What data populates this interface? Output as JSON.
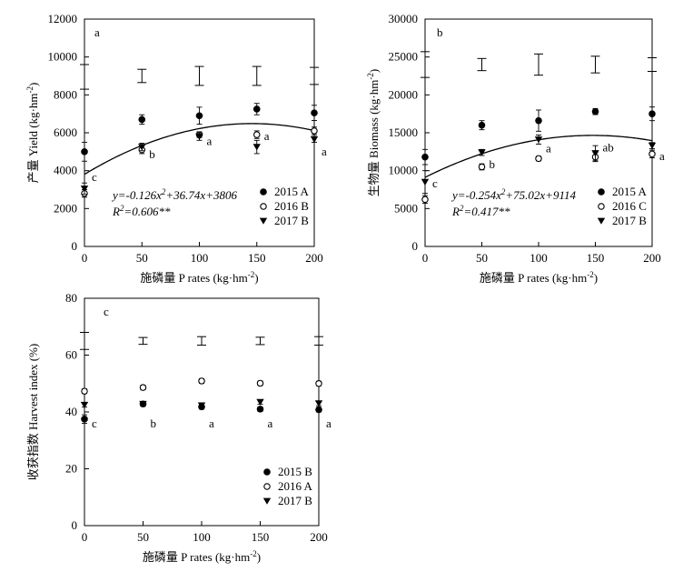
{
  "chart_data": [
    {
      "id": "a",
      "type": "scatter",
      "panel_label": "a",
      "xlabel": "施磷量 P rates (kg·hm⁻²)",
      "ylabel": "产量 Yield (kg·hm⁻²)",
      "xlim": [
        0,
        200
      ],
      "ylim": [
        0,
        12000
      ],
      "xticks": [
        0,
        50,
        100,
        150,
        200
      ],
      "yticks": [
        0,
        2000,
        4000,
        6000,
        8000,
        10000,
        12000
      ],
      "series": [
        {
          "name": "2015 A",
          "marker": "filled-circle",
          "x": [
            0,
            50,
            100,
            150,
            200
          ],
          "y": [
            5000,
            6700,
            6900,
            7250,
            7050
          ],
          "err": [
            500,
            250,
            450,
            300,
            400
          ]
        },
        {
          "name": "2016 B",
          "marker": "open-circle",
          "x": [
            0,
            50,
            100,
            150,
            200
          ],
          "y": [
            2800,
            5100,
            5900,
            5900,
            6100
          ],
          "err": [
            200,
            200,
            150,
            200,
            200
          ]
        },
        {
          "name": "2017 B",
          "marker": "filled-triangle",
          "x": [
            0,
            50,
            100,
            150,
            200
          ],
          "y": [
            3050,
            5250,
            5800,
            5250,
            5650
          ],
          "err": [
            300,
            200,
            200,
            350,
            150
          ]
        }
      ],
      "lsd_bars": [
        {
          "x": 0,
          "y": 8950,
          "half": 650
        },
        {
          "x": 50,
          "y": 9000,
          "half": 350
        },
        {
          "x": 100,
          "y": 9000,
          "half": 500
        },
        {
          "x": 150,
          "y": 9000,
          "half": 500
        },
        {
          "x": 200,
          "y": 9000,
          "half": 450
        }
      ],
      "fit": {
        "a": -0.126,
        "b": 36.74,
        "c": 3806
      },
      "equation": "y=-0.126x²+36.74x+3806",
      "r2": "R²=0.606**",
      "sig_labels": [
        {
          "x": 0,
          "y": 3650,
          "text": "c"
        },
        {
          "x": 50,
          "y": 4850,
          "text": "b"
        },
        {
          "x": 100,
          "y": 5550,
          "text": "a"
        },
        {
          "x": 150,
          "y": 5800,
          "text": "a"
        },
        {
          "x": 200,
          "y": 5000,
          "text": "a"
        }
      ]
    },
    {
      "id": "b",
      "type": "scatter",
      "panel_label": "b",
      "xlabel": "施磷量 P rates (kg·hm⁻²)",
      "ylabel": "生物量 Biomass (kg·hm⁻²)",
      "xlim": [
        0,
        200
      ],
      "ylim": [
        0,
        30000
      ],
      "xticks": [
        0,
        50,
        100,
        150,
        200
      ],
      "yticks": [
        0,
        5000,
        10000,
        15000,
        20000,
        25000,
        30000
      ],
      "series": [
        {
          "name": "2015 A",
          "marker": "filled-circle",
          "x": [
            0,
            50,
            100,
            150,
            200
          ],
          "y": [
            11800,
            16000,
            16600,
            17800,
            17500
          ],
          "err": [
            1000,
            600,
            1400,
            400,
            900
          ]
        },
        {
          "name": "2016 C",
          "marker": "open-circle",
          "x": [
            0,
            50,
            100,
            150,
            200
          ],
          "y": [
            6200,
            10500,
            11600,
            11800,
            12200
          ],
          "err": [
            500,
            400,
            300,
            600,
            500
          ]
        },
        {
          "name": "2017 B",
          "marker": "filled-triangle",
          "x": [
            0,
            50,
            100,
            150,
            200
          ],
          "y": [
            8500,
            12400,
            14100,
            12300,
            13300
          ],
          "err": [
            1500,
            400,
            600,
            1000,
            400
          ]
        }
      ],
      "lsd_bars": [
        {
          "x": 0,
          "y": 24000,
          "half": 1700
        },
        {
          "x": 50,
          "y": 24000,
          "half": 800
        },
        {
          "x": 100,
          "y": 24000,
          "half": 1400
        },
        {
          "x": 150,
          "y": 24000,
          "half": 1100
        },
        {
          "x": 200,
          "y": 24000,
          "half": 900
        }
      ],
      "fit": {
        "a": -0.254,
        "b": 75.02,
        "c": 9114
      },
      "equation": "y=-0.254x²+75.02x+9114",
      "r2": "R²=0.417**",
      "sig_labels": [
        {
          "x": 0,
          "y": 8300,
          "text": "c"
        },
        {
          "x": 50,
          "y": 10800,
          "text": "b"
        },
        {
          "x": 100,
          "y": 12900,
          "text": "a"
        },
        {
          "x": 150,
          "y": 13000,
          "text": "ab"
        },
        {
          "x": 200,
          "y": 11900,
          "text": "a"
        }
      ]
    },
    {
      "id": "c",
      "type": "scatter",
      "panel_label": "c",
      "xlabel": "施磷量 P rates (kg·hm⁻²)",
      "ylabel": "收获指数 Harvest index (%)",
      "xlim": [
        0,
        200
      ],
      "ylim": [
        0,
        80
      ],
      "xticks": [
        0,
        50,
        100,
        150,
        200
      ],
      "yticks": [
        0,
        20,
        40,
        60,
        80
      ],
      "series": [
        {
          "name": "2015 B",
          "marker": "filled-circle",
          "x": [
            0,
            50,
            100,
            150,
            200
          ],
          "y": [
            37.5,
            42.8,
            41.8,
            41.0,
            40.8
          ],
          "err": [
            1.5,
            0.8,
            0.8,
            0.8,
            0.8
          ]
        },
        {
          "name": "2016 A",
          "marker": "open-circle",
          "x": [
            0,
            50,
            100,
            150,
            200
          ],
          "y": [
            47.3,
            48.6,
            50.9,
            50.1,
            50.0
          ],
          "err": [
            0.8,
            0.8,
            0.8,
            0.8,
            0.8
          ]
        },
        {
          "name": "2017 B",
          "marker": "filled-triangle",
          "x": [
            0,
            50,
            100,
            150,
            200
          ],
          "y": [
            42.5,
            42.8,
            42.3,
            43.5,
            43.0
          ],
          "err": [
            0.8,
            0.8,
            0.8,
            0.8,
            0.8
          ]
        }
      ],
      "lsd_bars": [
        {
          "x": 0,
          "y": 65.0,
          "half": 3.0
        },
        {
          "x": 50,
          "y": 65.0,
          "half": 1.2
        },
        {
          "x": 100,
          "y": 65.0,
          "half": 1.5
        },
        {
          "x": 150,
          "y": 65.0,
          "half": 1.3
        },
        {
          "x": 200,
          "y": 65.0,
          "half": 1.5
        }
      ],
      "sig_labels": [
        {
          "x": 0,
          "y": 35.8,
          "text": "c"
        },
        {
          "x": 50,
          "y": 35.8,
          "text": "b"
        },
        {
          "x": 100,
          "y": 35.8,
          "text": "a"
        },
        {
          "x": 150,
          "y": 35.8,
          "text": "a"
        },
        {
          "x": 200,
          "y": 35.8,
          "text": "a"
        }
      ]
    }
  ]
}
